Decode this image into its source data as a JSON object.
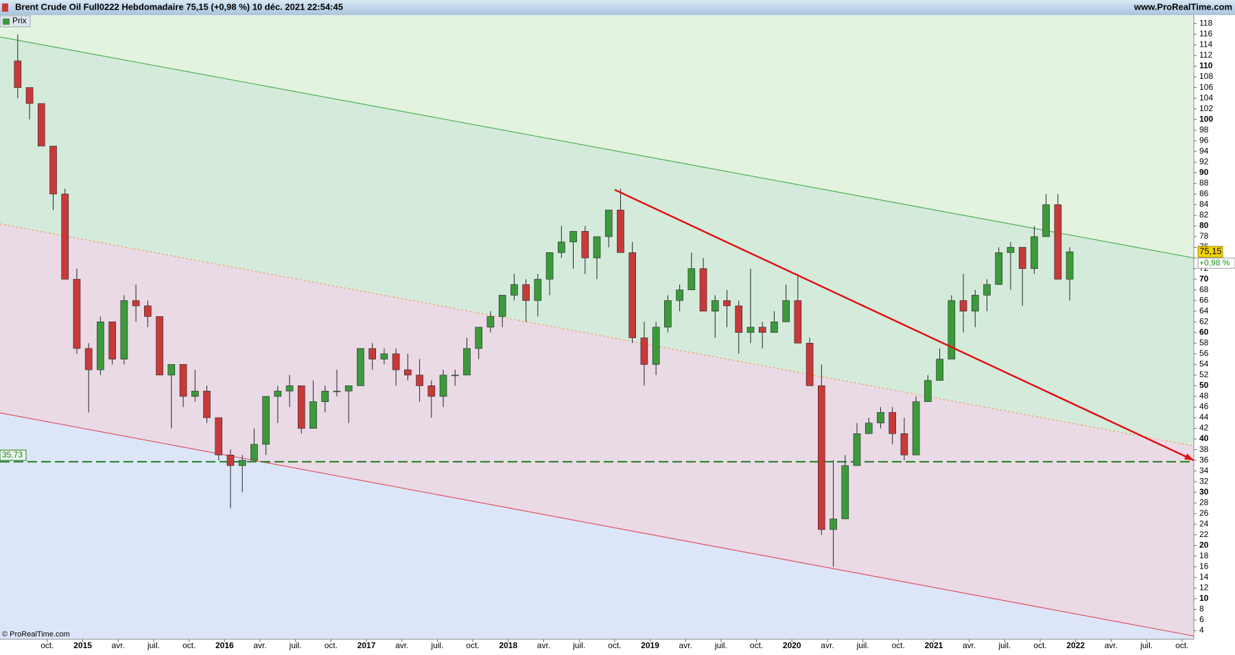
{
  "chart_data": {
    "type": "candlestick",
    "title": "Brent Crude Oil Full0222 Hebdomadaire 75,15 (+0,98 %) 10 déc. 2021 22:54:45",
    "site": "www.ProRealTime.com",
    "legend": "Prix",
    "copyright": "© ProRealTime.com",
    "up_color": "#3c9a3c",
    "down_color": "#c83a3a",
    "x": [
      "2014-07",
      "2014-08",
      "2014-09",
      "2014-10",
      "2014-11",
      "2014-12",
      "2015-01",
      "2015-02",
      "2015-03",
      "2015-04",
      "2015-05",
      "2015-06",
      "2015-07",
      "2015-08",
      "2015-09",
      "2015-10",
      "2015-11",
      "2015-12",
      "2016-01",
      "2016-02",
      "2016-03",
      "2016-04",
      "2016-05",
      "2016-06",
      "2016-07",
      "2016-08",
      "2016-09",
      "2016-10",
      "2016-11",
      "2016-12",
      "2017-01",
      "2017-02",
      "2017-03",
      "2017-04",
      "2017-05",
      "2017-06",
      "2017-07",
      "2017-08",
      "2017-09",
      "2017-10",
      "2017-11",
      "2017-12",
      "2018-01",
      "2018-02",
      "2018-03",
      "2018-04",
      "2018-05",
      "2018-06",
      "2018-07",
      "2018-08",
      "2018-09",
      "2018-10",
      "2018-11",
      "2018-12",
      "2019-01",
      "2019-02",
      "2019-03",
      "2019-04",
      "2019-05",
      "2019-06",
      "2019-07",
      "2019-08",
      "2019-09",
      "2019-10",
      "2019-11",
      "2019-12",
      "2020-01",
      "2020-02",
      "2020-03",
      "2020-04",
      "2020-05",
      "2020-06",
      "2020-07",
      "2020-08",
      "2020-09",
      "2020-10",
      "2020-11",
      "2020-12",
      "2021-01",
      "2021-02",
      "2021-03",
      "2021-04",
      "2021-05",
      "2021-06",
      "2021-07",
      "2021-08",
      "2021-09",
      "2021-10",
      "2021-11",
      "2021-12"
    ],
    "open": [
      111,
      106,
      103,
      95,
      86,
      70,
      57,
      53,
      62,
      55,
      66,
      65,
      63,
      52,
      54,
      48,
      49,
      44,
      37,
      35,
      36,
      39,
      48,
      49,
      50,
      42,
      47,
      49,
      49,
      50,
      57,
      55,
      56,
      53,
      52,
      50,
      48,
      52,
      52,
      57,
      61,
      63,
      67,
      69,
      66,
      70,
      75,
      77,
      79,
      74,
      78,
      83,
      75,
      59,
      54,
      61,
      66,
      68,
      72,
      64,
      66,
      65,
      60,
      61,
      60,
      62,
      66,
      58,
      50,
      23,
      25,
      35,
      41,
      43,
      45,
      41,
      37,
      47,
      51,
      55,
      66,
      64,
      67,
      69,
      75,
      76,
      72,
      78,
      84,
      70
    ],
    "high": [
      116,
      106,
      103,
      95,
      87,
      72,
      58,
      63,
      62,
      67,
      69,
      66,
      63,
      54,
      54,
      53,
      50,
      44,
      38,
      37,
      42,
      48,
      50,
      52,
      50,
      51,
      50,
      53,
      50,
      57,
      58,
      57,
      57,
      56,
      55,
      51,
      53,
      53,
      59,
      61,
      64,
      67,
      71,
      70,
      71,
      75,
      80,
      79,
      80,
      78,
      83,
      87,
      77,
      62,
      62,
      67,
      69,
      75,
      74,
      67,
      68,
      66,
      72,
      62,
      64,
      69,
      71,
      59,
      54,
      36,
      37,
      43,
      44,
      46,
      46,
      44,
      48,
      52,
      57,
      67,
      71,
      68,
      70,
      76,
      77,
      76,
      80,
      86,
      86,
      76
    ],
    "low": [
      104,
      100,
      95,
      83,
      70,
      56,
      45,
      52,
      54,
      54,
      62,
      61,
      52,
      42,
      46,
      47,
      43,
      36,
      27,
      30,
      36,
      37,
      43,
      46,
      41,
      42,
      45,
      48,
      43,
      50,
      53,
      54,
      50,
      51,
      47,
      44,
      46,
      50,
      52,
      55,
      60,
      61,
      66,
      62,
      63,
      67,
      74,
      72,
      71,
      70,
      76,
      75,
      58,
      50,
      52,
      60,
      64,
      68,
      64,
      59,
      61,
      56,
      58,
      57,
      60,
      62,
      58,
      50,
      22,
      16,
      25,
      35,
      41,
      42,
      39,
      36,
      37,
      47,
      51,
      55,
      60,
      61,
      64,
      69,
      68,
      65,
      71,
      78,
      70,
      66
    ],
    "close": [
      106,
      103,
      95,
      86,
      70,
      57,
      53,
      62,
      55,
      66,
      65,
      63,
      52,
      54,
      48,
      49,
      44,
      37,
      35,
      36,
      39,
      48,
      49,
      50,
      42,
      47,
      49,
      49,
      50,
      57,
      55,
      56,
      53,
      52,
      50,
      48,
      52,
      52,
      57,
      61,
      63,
      67,
      69,
      66,
      70,
      75,
      77,
      79,
      74,
      78,
      83,
      75,
      59,
      54,
      61,
      66,
      68,
      72,
      64,
      66,
      65,
      60,
      61,
      60,
      62,
      66,
      58,
      50,
      23,
      25,
      35,
      41,
      43,
      45,
      41,
      37,
      47,
      51,
      55,
      66,
      64,
      67,
      69,
      75,
      76,
      72,
      78,
      84,
      70,
      75.15
    ],
    "xlim": [
      "2014-06",
      "2022-11"
    ],
    "xticks": [
      {
        "value": "2014-10",
        "label": "oct."
      },
      {
        "value": "2015-01",
        "label": "2015"
      },
      {
        "value": "2015-04",
        "label": "avr."
      },
      {
        "value": "2015-07",
        "label": "juil."
      },
      {
        "value": "2015-10",
        "label": "oct."
      },
      {
        "value": "2016-01",
        "label": "2016"
      },
      {
        "value": "2016-04",
        "label": "avr."
      },
      {
        "value": "2016-07",
        "label": "juil."
      },
      {
        "value": "2016-10",
        "label": "oct."
      },
      {
        "value": "2017-01",
        "label": "2017"
      },
      {
        "value": "2017-04",
        "label": "avr."
      },
      {
        "value": "2017-07",
        "label": "juil."
      },
      {
        "value": "2017-10",
        "label": "oct."
      },
      {
        "value": "2018-01",
        "label": "2018"
      },
      {
        "value": "2018-04",
        "label": "avr."
      },
      {
        "value": "2018-07",
        "label": "juil."
      },
      {
        "value": "2018-10",
        "label": "oct."
      },
      {
        "value": "2019-01",
        "label": "2019"
      },
      {
        "value": "2019-04",
        "label": "avr."
      },
      {
        "value": "2019-07",
        "label": "juil."
      },
      {
        "value": "2019-10",
        "label": "oct."
      },
      {
        "value": "2020-01",
        "label": "2020"
      },
      {
        "value": "2020-04",
        "label": "avr."
      },
      {
        "value": "2020-07",
        "label": "juil."
      },
      {
        "value": "2020-10",
        "label": "oct."
      },
      {
        "value": "2021-01",
        "label": "2021"
      },
      {
        "value": "2021-04",
        "label": "avr."
      },
      {
        "value": "2021-07",
        "label": "juil."
      },
      {
        "value": "2021-10",
        "label": "oct."
      },
      {
        "value": "2022-01",
        "label": "2022"
      },
      {
        "value": "2022-04",
        "label": "avr."
      },
      {
        "value": "2022-07",
        "label": "juil."
      },
      {
        "value": "2022-10",
        "label": "oct."
      }
    ],
    "ylim": [
      2.4,
      119.6
    ],
    "yticks": [
      4,
      6,
      8,
      10,
      12,
      14,
      16,
      18,
      20,
      22,
      24,
      26,
      28,
      30,
      32,
      34,
      36,
      38,
      40,
      42,
      44,
      46,
      48,
      50,
      52,
      54,
      56,
      58,
      60,
      62,
      64,
      66,
      68,
      70,
      72,
      74,
      76,
      78,
      80,
      82,
      84,
      86,
      88,
      90,
      92,
      94,
      96,
      98,
      100,
      102,
      104,
      106,
      108,
      110,
      112,
      114,
      116,
      118
    ],
    "band_colors": [
      "#e3f3e0",
      "#d4ebdb",
      "#e9dae6",
      "#dde6f8"
    ],
    "channel": [
      {
        "from": [
          "2014-06",
          115.5
        ],
        "to": [
          "2022-11",
          74
        ],
        "color": "#4cb050"
      },
      {
        "from": [
          "2014-06",
          80.4
        ],
        "to": [
          "2022-11",
          38.7
        ],
        "color": "#f0a060"
      },
      {
        "from": [
          "2014-06",
          44.9
        ],
        "to": [
          "2022-11",
          3
        ],
        "color": "#e05060"
      }
    ],
    "trend": {
      "from": [
        "2018-10",
        86.8
      ],
      "to": [
        "2022-11",
        36
      ],
      "color": "#e01010"
    },
    "level": {
      "value": 35.73,
      "label": "35,73",
      "color": "#1a7a1a"
    },
    "last_price": {
      "value": 75.15,
      "label": "75,15"
    },
    "change": "+0,98 %"
  }
}
